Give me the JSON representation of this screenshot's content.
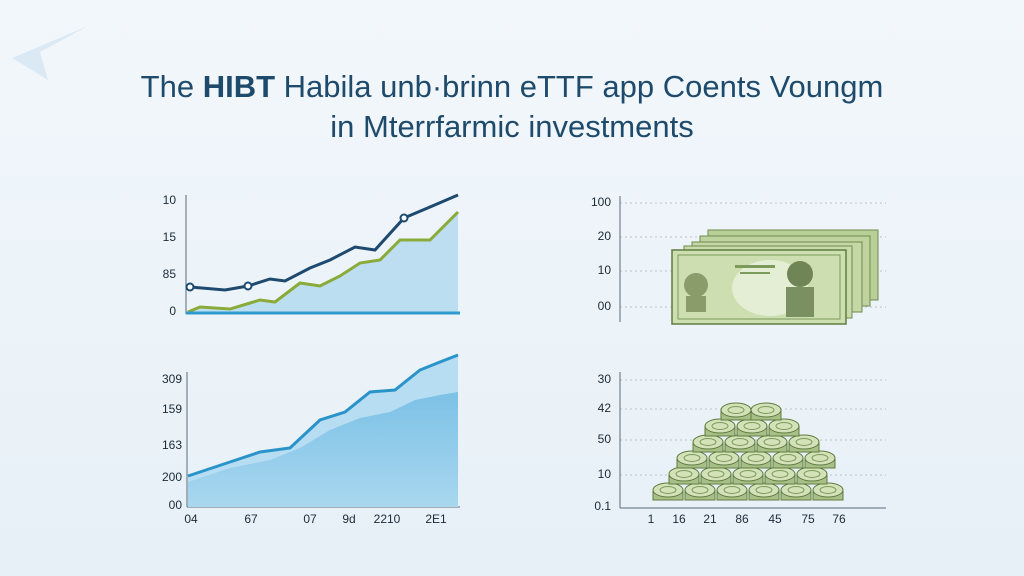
{
  "title": {
    "line1_prefix": "The ",
    "line1_bold": "HIBT",
    "line1_rest": " Habila unb·brinn eTTF app Coents Voungm",
    "line2": "in Mterrfarmic investments"
  },
  "panels": [
    {
      "y_labels": [
        "10",
        "15",
        "85",
        "0"
      ]
    },
    {
      "y_labels": [
        "100",
        "20",
        "10",
        "00"
      ]
    },
    {
      "y_labels": [
        "309",
        "159",
        "163",
        "200",
        "00"
      ],
      "x_labels": [
        "04",
        "67",
        "07",
        "9d",
        "2210",
        "2E1"
      ]
    },
    {
      "y_labels": [
        "30",
        "42",
        "50",
        "10",
        "0.1"
      ],
      "x_labels": [
        "1",
        "16",
        "21",
        "86",
        "45",
        "75",
        "76"
      ]
    }
  ]
}
